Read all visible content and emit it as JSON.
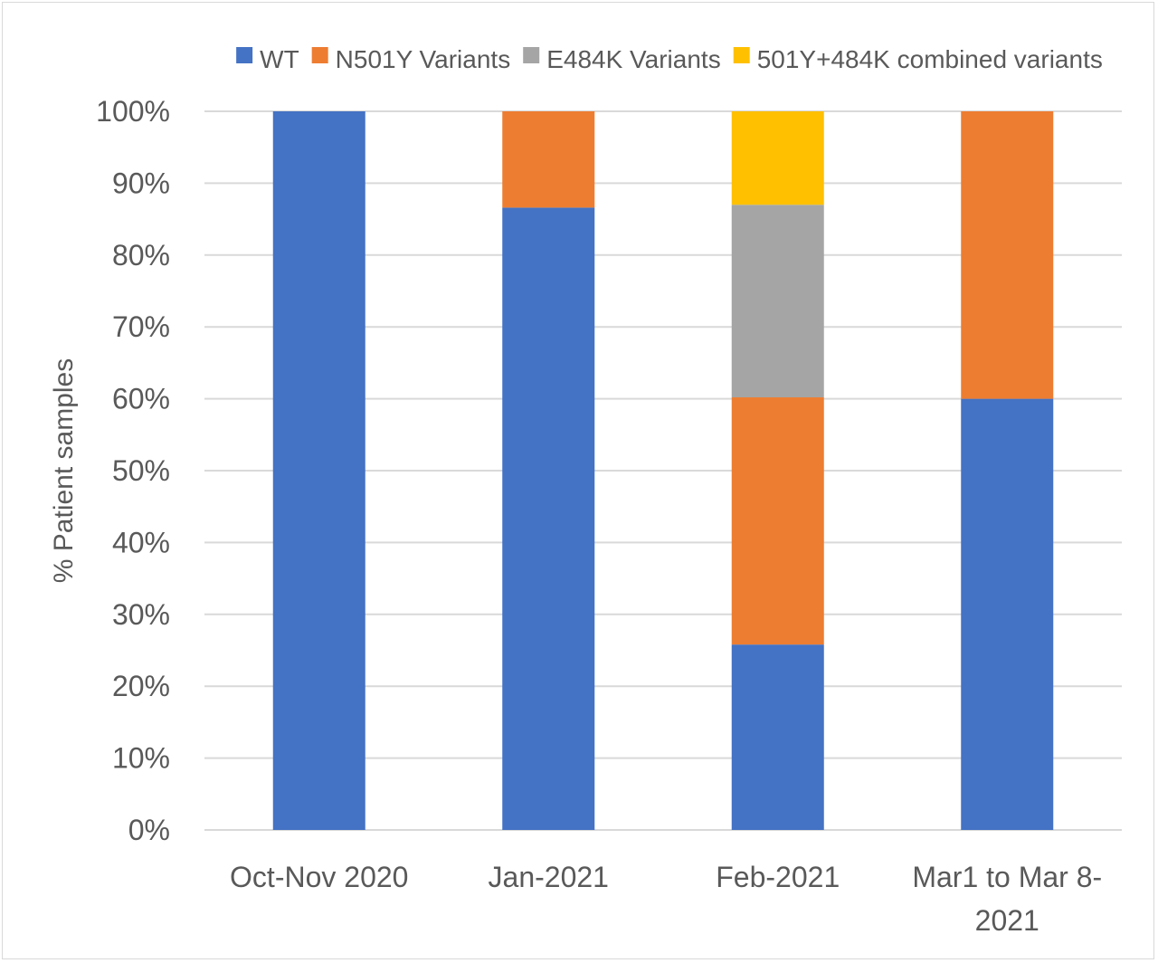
{
  "chart_data": {
    "type": "bar",
    "stacked": true,
    "percent_stacked": true,
    "ylabel": "% Patient samples",
    "xlabel": "",
    "ylim": [
      0,
      100
    ],
    "yticks": [
      "0%",
      "10%",
      "20%",
      "30%",
      "40%",
      "50%",
      "60%",
      "70%",
      "80%",
      "90%",
      "100%"
    ],
    "categories": [
      [
        "Oct-Nov 2020"
      ],
      [
        "Jan-2021"
      ],
      [
        "Feb-2021"
      ],
      [
        "Mar1 to Mar 8-",
        "2021"
      ]
    ],
    "series": [
      {
        "name": "WT",
        "color": "#4472C4",
        "values": [
          100,
          86.6,
          25.8,
          60
        ]
      },
      {
        "name": "N501Y Variants",
        "color": "#ED7D31",
        "values": [
          0,
          13.4,
          34.4,
          40
        ]
      },
      {
        "name": "E484K Variants",
        "color": "#A5A5A5",
        "values": [
          0,
          0,
          26.8,
          0
        ]
      },
      {
        "name": "501Y+484K combined variants",
        "color": "#FFC000",
        "values": [
          0,
          0,
          13,
          0
        ]
      }
    ],
    "legend_position": "top",
    "grid": true,
    "gridline_color": "#d9d9d9"
  }
}
